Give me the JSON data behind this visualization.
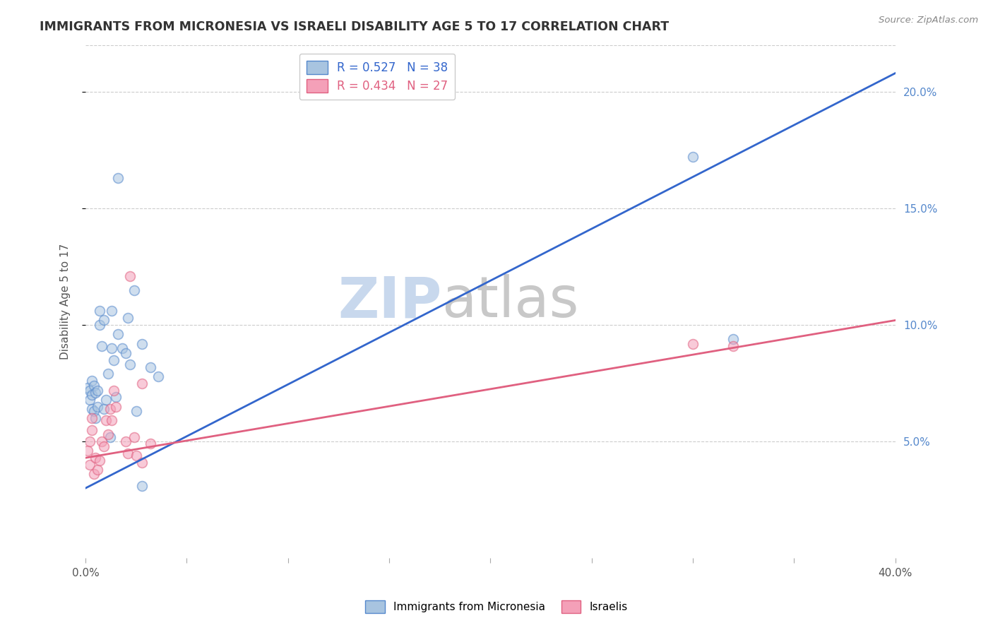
{
  "title": "IMMIGRANTS FROM MICRONESIA VS ISRAELI DISABILITY AGE 5 TO 17 CORRELATION CHART",
  "source": "Source: ZipAtlas.com",
  "ylabel": "Disability Age 5 to 17",
  "xlim": [
    0.0,
    0.4
  ],
  "ylim": [
    0.0,
    0.22
  ],
  "xticks": [
    0.0,
    0.05,
    0.1,
    0.15,
    0.2,
    0.25,
    0.3,
    0.35,
    0.4
  ],
  "xtick_labels": [
    "0.0%",
    "",
    "",
    "",
    "",
    "",
    "",
    "",
    "40.0%"
  ],
  "yticks": [
    0.05,
    0.1,
    0.15,
    0.2
  ],
  "ytick_labels": [
    "5.0%",
    "10.0%",
    "15.0%",
    "20.0%"
  ],
  "blue_R": 0.527,
  "blue_N": 38,
  "pink_R": 0.434,
  "pink_N": 27,
  "blue_line_x": [
    0.0,
    0.4
  ],
  "blue_line_y": [
    0.03,
    0.208
  ],
  "pink_line_x": [
    0.0,
    0.4
  ],
  "pink_line_y": [
    0.043,
    0.102
  ],
  "blue_scatter_x": [
    0.001,
    0.002,
    0.002,
    0.003,
    0.003,
    0.003,
    0.004,
    0.004,
    0.005,
    0.005,
    0.006,
    0.006,
    0.007,
    0.007,
    0.008,
    0.009,
    0.01,
    0.011,
    0.012,
    0.013,
    0.014,
    0.015,
    0.016,
    0.018,
    0.02,
    0.022,
    0.025,
    0.028,
    0.009,
    0.013,
    0.016,
    0.021,
    0.024,
    0.028,
    0.032,
    0.036,
    0.3,
    0.32
  ],
  "blue_scatter_y": [
    0.073,
    0.068,
    0.072,
    0.076,
    0.064,
    0.07,
    0.063,
    0.074,
    0.071,
    0.06,
    0.065,
    0.072,
    0.1,
    0.106,
    0.091,
    0.064,
    0.068,
    0.079,
    0.052,
    0.09,
    0.085,
    0.069,
    0.096,
    0.09,
    0.088,
    0.083,
    0.063,
    0.031,
    0.102,
    0.106,
    0.163,
    0.103,
    0.115,
    0.092,
    0.082,
    0.078,
    0.172,
    0.094
  ],
  "pink_scatter_x": [
    0.001,
    0.002,
    0.002,
    0.003,
    0.003,
    0.004,
    0.005,
    0.006,
    0.007,
    0.008,
    0.009,
    0.01,
    0.011,
    0.012,
    0.013,
    0.014,
    0.015,
    0.02,
    0.021,
    0.025,
    0.028,
    0.032,
    0.022,
    0.024,
    0.028,
    0.3,
    0.32
  ],
  "pink_scatter_y": [
    0.046,
    0.05,
    0.04,
    0.06,
    0.055,
    0.036,
    0.043,
    0.038,
    0.042,
    0.05,
    0.048,
    0.059,
    0.053,
    0.064,
    0.059,
    0.072,
    0.065,
    0.05,
    0.045,
    0.044,
    0.041,
    0.049,
    0.121,
    0.052,
    0.075,
    0.092,
    0.091
  ],
  "blue_color": "#a8c4e0",
  "pink_color": "#f4a0b8",
  "blue_edge_color": "#5588cc",
  "pink_edge_color": "#e06080",
  "blue_line_color": "#3366cc",
  "pink_line_color": "#e06080",
  "watermark_zip_color": "#c8d8ed",
  "watermark_atlas_color": "#c8c8c8",
  "legend_label_blue": "Immigrants from Micronesia",
  "legend_label_pink": "Israelis",
  "background_color": "#ffffff",
  "grid_color": "#cccccc",
  "title_color": "#333333",
  "right_ytick_color": "#5588cc",
  "scatter_size": 100,
  "scatter_alpha": 0.55,
  "scatter_linewidth": 1.2
}
